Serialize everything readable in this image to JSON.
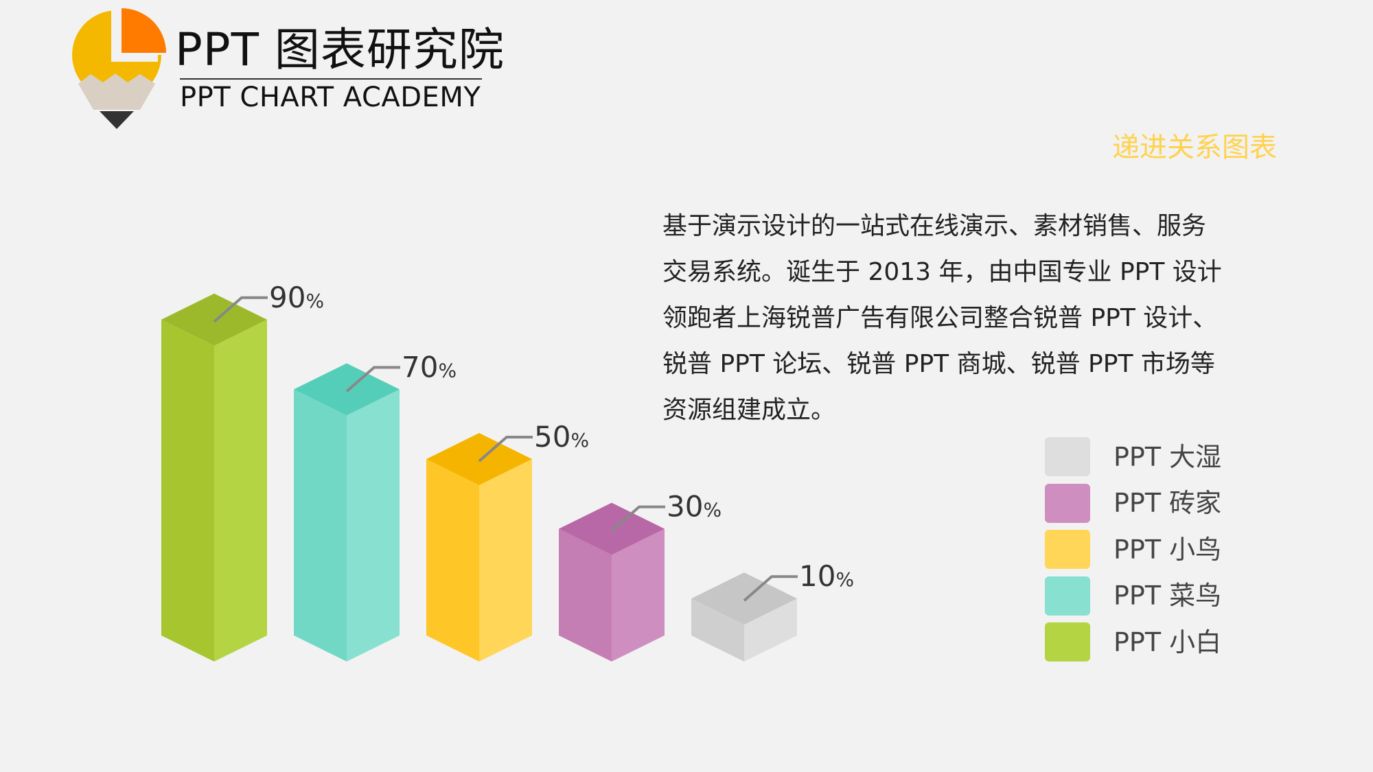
{
  "brand": {
    "title_cn": "PPT 图表研究院",
    "title_en": "PPT CHART ACADEMY"
  },
  "subtitle": "递进关系图表",
  "description": "基于演示设计的一站式在线演示、素材销售、服务交易系统。诞生于 2013 年，由中国专业 PPT 设计领跑者上海锐普广告有限公司整合锐普 PPT 设计、锐普 PPT 论坛、锐普 PPT 商城、锐普 PPT 市场等资源组建成立。",
  "colors": {
    "background": "#f2f2f2",
    "logo_orange": "#ff7b00",
    "logo_yellow": "#f5b800",
    "subtitle": "#ffd24d"
  },
  "chart_data": {
    "type": "bar",
    "style": "3d-isometric-columns",
    "categories": [
      "PPT 小白",
      "PPT 菜鸟",
      "PPT 小鸟",
      "PPT 砖家",
      "PPT 大湿"
    ],
    "values": [
      90,
      70,
      50,
      30,
      10
    ],
    "value_unit": "%",
    "ylim": [
      0,
      100
    ],
    "grid": false,
    "legend_position": "right",
    "legend_order": [
      "PPT 大湿",
      "PPT 砖家",
      "PPT 小鸟",
      "PPT 菜鸟",
      "PPT 小白"
    ],
    "series_colors": [
      {
        "left": "#a6c52f",
        "right": "#b5d443",
        "top": "#9cb92b"
      },
      {
        "left": "#72d8c6",
        "right": "#87e0d0",
        "top": "#55ceb9"
      },
      {
        "left": "#ffc627",
        "right": "#ffd658",
        "top": "#f5b400"
      },
      {
        "left": "#c47eb3",
        "right": "#cf8ec0",
        "top": "#b868a6"
      },
      {
        "left": "#cfcfcf",
        "right": "#dedede",
        "top": "#c6c6c6"
      }
    ]
  }
}
